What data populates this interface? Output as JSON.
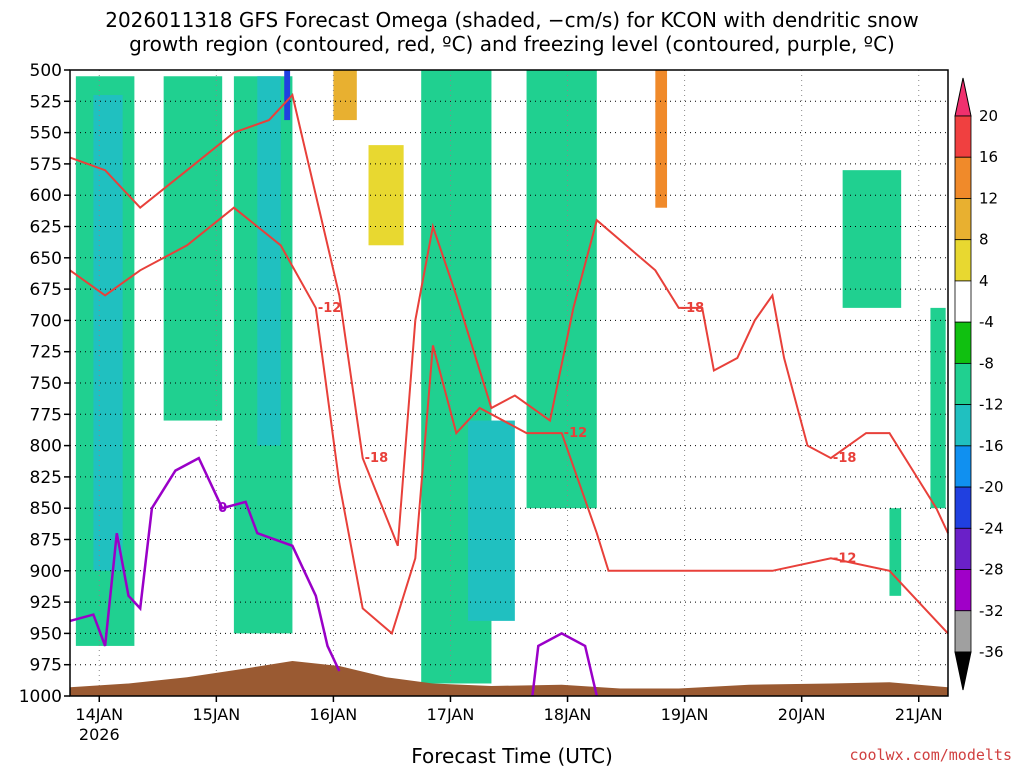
{
  "chart_data": {
    "type": "heatmap",
    "title_line1": "2026011318 GFS Forecast Omega (shaded, −cm/s) for KCON with dendritic snow",
    "title_line2": "growth region (contoured, red, ºC) and freezing level (contoured, purple, ºC)",
    "xlabel": "Forecast Time (UTC)",
    "credit": "coolwx.com/modelts",
    "y_axis": {
      "units": "hPa",
      "ticks": [
        500,
        525,
        550,
        575,
        600,
        625,
        650,
        675,
        700,
        725,
        750,
        775,
        800,
        825,
        850,
        875,
        900,
        925,
        950,
        975,
        1000
      ],
      "range": [
        1000,
        500
      ]
    },
    "x_axis": {
      "ticks": [
        "14JAN",
        "15JAN",
        "16JAN",
        "17JAN",
        "18JAN",
        "19JAN",
        "20JAN",
        "21JAN"
      ],
      "tick_day_offsets": [
        0.25,
        1.25,
        2.25,
        3.25,
        4.25,
        5.25,
        6.25,
        7.25
      ],
      "year_label": "2026",
      "range_days": [
        0,
        7.5
      ]
    },
    "colorbar": {
      "levels": [
        20,
        16,
        12,
        8,
        4,
        -4,
        -8,
        -12,
        -16,
        -20,
        -24,
        -28,
        -32,
        -36
      ],
      "colors": [
        "#f0306e",
        "#f04040",
        "#f08a2a",
        "#e8b030",
        "#e8d830",
        "#ffffff",
        "#10c010",
        "#20d090",
        "#20c0c0",
        "#1090f0",
        "#2040e0",
        "#6a20c8",
        "#a000c8",
        "#a0a0a0",
        "#000000"
      ]
    },
    "omega_regions": [
      {
        "t0": 0.05,
        "t1": 0.55,
        "p0": 505,
        "p1": 960,
        "value": -8
      },
      {
        "t0": 0.2,
        "t1": 0.45,
        "p0": 520,
        "p1": 900,
        "value": -12
      },
      {
        "t0": 0.8,
        "t1": 1.3,
        "p0": 505,
        "p1": 780,
        "value": -8
      },
      {
        "t0": 1.4,
        "t1": 1.9,
        "p0": 505,
        "p1": 950,
        "value": -8
      },
      {
        "t0": 1.6,
        "t1": 1.8,
        "p0": 505,
        "p1": 800,
        "value": -12
      },
      {
        "t0": 1.83,
        "t1": 1.88,
        "p0": 500,
        "p1": 540,
        "value": -20
      },
      {
        "t0": 2.2,
        "t1": 2.9,
        "p0": 500,
        "p1": 950,
        "value": 4
      },
      {
        "t0": 2.25,
        "t1": 2.45,
        "p0": 500,
        "p1": 540,
        "value": 12
      },
      {
        "t0": 2.55,
        "t1": 2.85,
        "p0": 560,
        "p1": 640,
        "value": 8
      },
      {
        "t0": 3.0,
        "t1": 3.6,
        "p0": 500,
        "p1": 990,
        "value": -8
      },
      {
        "t0": 3.4,
        "t1": 3.8,
        "p0": 780,
        "p1": 940,
        "value": -12
      },
      {
        "t0": 3.9,
        "t1": 4.5,
        "p0": 500,
        "p1": 850,
        "value": -8
      },
      {
        "t0": 4.6,
        "t1": 5.3,
        "p0": 500,
        "p1": 760,
        "value": 4
      },
      {
        "t0": 5.0,
        "t1": 5.1,
        "p0": 500,
        "p1": 610,
        "value": 16
      },
      {
        "t0": 5.2,
        "t1": 5.6,
        "p0": 700,
        "p1": 860,
        "value": 4
      },
      {
        "t0": 6.1,
        "t1": 6.4,
        "p0": 580,
        "p1": 640,
        "value": 4
      },
      {
        "t0": 6.6,
        "t1": 7.1,
        "p0": 580,
        "p1": 690,
        "value": -8
      },
      {
        "t0": 7.15,
        "t1": 7.45,
        "p0": 500,
        "p1": 550,
        "value": 4
      },
      {
        "t0": 7.35,
        "t1": 7.48,
        "p0": 690,
        "p1": 850,
        "value": -8
      },
      {
        "t0": 7.0,
        "t1": 7.1,
        "p0": 850,
        "p1": 920,
        "value": -8
      }
    ],
    "dgz_contours": [
      {
        "label": "-18",
        "points": [
          [
            0,
            570
          ],
          [
            0.3,
            580
          ],
          [
            0.6,
            610
          ],
          [
            1.0,
            580
          ],
          [
            1.4,
            550
          ],
          [
            1.7,
            540
          ],
          [
            1.9,
            520
          ],
          [
            2.3,
            680
          ],
          [
            2.5,
            810
          ],
          [
            2.8,
            880
          ],
          [
            2.95,
            700
          ],
          [
            3.1,
            625
          ],
          [
            3.3,
            680
          ],
          [
            3.6,
            770
          ],
          [
            3.8,
            760
          ],
          [
            4.1,
            780
          ],
          [
            4.3,
            690
          ],
          [
            4.5,
            620
          ],
          [
            4.75,
            640
          ],
          [
            5.0,
            660
          ],
          [
            5.2,
            690
          ],
          [
            5.4,
            690
          ],
          [
            5.5,
            740
          ],
          [
            5.7,
            730
          ],
          [
            5.85,
            700
          ],
          [
            6.0,
            680
          ],
          [
            6.1,
            730
          ],
          [
            6.3,
            800
          ],
          [
            6.5,
            810
          ],
          [
            6.8,
            790
          ],
          [
            7.0,
            790
          ],
          [
            7.2,
            820
          ],
          [
            7.4,
            850
          ],
          [
            7.5,
            870
          ]
        ]
      },
      {
        "label": "-12",
        "points": [
          [
            0,
            660
          ],
          [
            0.3,
            680
          ],
          [
            0.6,
            660
          ],
          [
            1.0,
            640
          ],
          [
            1.4,
            610
          ],
          [
            1.8,
            640
          ],
          [
            2.1,
            690
          ],
          [
            2.3,
            830
          ],
          [
            2.5,
            930
          ],
          [
            2.75,
            950
          ],
          [
            2.95,
            890
          ],
          [
            3.1,
            720
          ],
          [
            3.3,
            790
          ],
          [
            3.5,
            770
          ],
          [
            3.9,
            790
          ],
          [
            4.2,
            790
          ],
          [
            4.5,
            870
          ],
          [
            4.6,
            900
          ],
          [
            5.0,
            900
          ],
          [
            5.4,
            900
          ],
          [
            6.0,
            900
          ],
          [
            6.5,
            890
          ],
          [
            7.0,
            900
          ],
          [
            7.3,
            930
          ],
          [
            7.5,
            950
          ]
        ]
      }
    ],
    "freezing_contours": [
      {
        "label": "0",
        "points": [
          [
            0,
            940
          ],
          [
            0.2,
            935
          ],
          [
            0.3,
            960
          ],
          [
            0.4,
            870
          ],
          [
            0.5,
            920
          ],
          [
            0.6,
            930
          ],
          [
            0.7,
            850
          ],
          [
            0.9,
            820
          ],
          [
            1.1,
            810
          ],
          [
            1.3,
            850
          ],
          [
            1.5,
            845
          ],
          [
            1.6,
            870
          ],
          [
            1.9,
            880
          ],
          [
            2.1,
            920
          ],
          [
            2.2,
            960
          ],
          [
            2.3,
            980
          ]
        ]
      },
      {
        "label": "0",
        "points": [
          [
            3.95,
            1000
          ],
          [
            4.0,
            960
          ],
          [
            4.2,
            950
          ],
          [
            4.4,
            960
          ],
          [
            4.5,
            1000
          ]
        ]
      }
    ],
    "terrain": [
      [
        0,
        993
      ],
      [
        0.5,
        990
      ],
      [
        1.0,
        985
      ],
      [
        1.5,
        978
      ],
      [
        1.9,
        972
      ],
      [
        2.3,
        976
      ],
      [
        2.7,
        985
      ],
      [
        3.1,
        990
      ],
      [
        3.6,
        992
      ],
      [
        4.2,
        991
      ],
      [
        4.7,
        994
      ],
      [
        5.2,
        994
      ],
      [
        5.8,
        991
      ],
      [
        6.5,
        990
      ],
      [
        7.0,
        989
      ],
      [
        7.5,
        993
      ]
    ]
  }
}
